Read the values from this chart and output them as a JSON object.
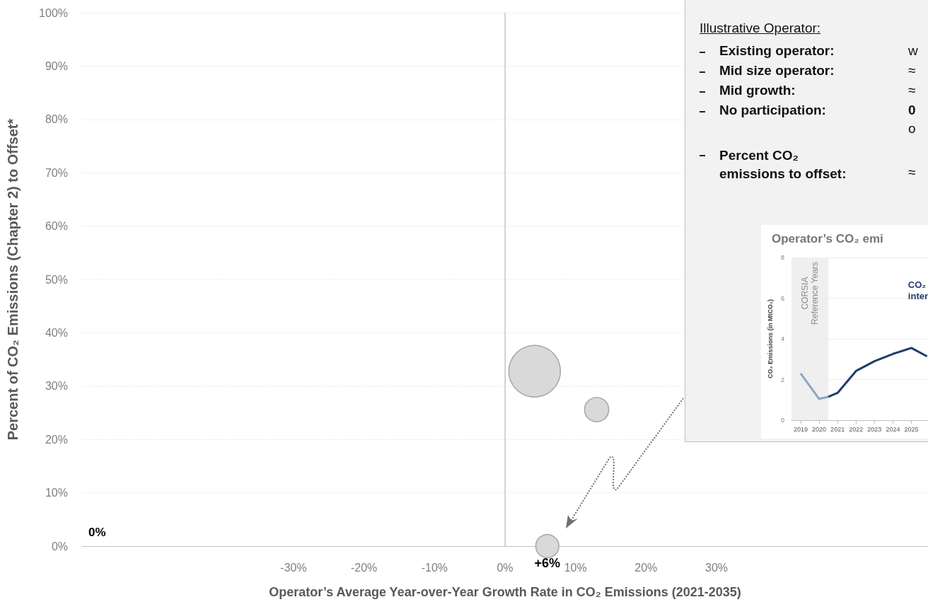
{
  "chart_data": [
    {
      "type": "bubble",
      "xlabel": "Operator’s Average Year-over-Year Growth Rate in CO₂ Emissions (2021-2035)",
      "ylabel": "Percent of CO₂ Emissions (Chapter 2) to Offset*",
      "x": [
        4.2,
        13,
        6
      ],
      "values": [
        32.8,
        25.6,
        0
      ],
      "sizes": [
        1,
        0.22,
        0.2
      ],
      "color": "#d9d9d9",
      "xlim": [
        -60,
        60
      ],
      "xticks": [
        {
          "value": -30,
          "label": "-30%"
        },
        {
          "value": -20,
          "label": "-20%"
        },
        {
          "value": -10,
          "label": "-10%"
        },
        {
          "value": 0,
          "label": "0%"
        },
        {
          "value": 10,
          "label": "10%"
        },
        {
          "value": 20,
          "label": "20%"
        },
        {
          "value": 30,
          "label": "30%"
        }
      ],
      "ylim": [
        0,
        100
      ],
      "yticks": [
        {
          "value": 0,
          "label": "0%"
        },
        {
          "value": 10,
          "label": "10%"
        },
        {
          "value": 20,
          "label": "20%"
        },
        {
          "value": 30,
          "label": "30%"
        },
        {
          "value": 40,
          "label": "40%"
        },
        {
          "value": 50,
          "label": "50%"
        },
        {
          "value": 60,
          "label": "60%"
        },
        {
          "value": 70,
          "label": "70%"
        },
        {
          "value": 80,
          "label": "80%"
        },
        {
          "value": 90,
          "label": "90%"
        },
        {
          "value": 100,
          "label": "100%"
        }
      ],
      "grid": "y",
      "ref_lines": [
        {
          "axis": "x",
          "value": 0,
          "color": "#d0d0d0"
        }
      ],
      "annotations": [
        {
          "text": "+6%",
          "x": 6,
          "y": 0
        },
        "0%"
      ]
    },
    {
      "type": "other",
      "annotations": [
        "Illustrative Operator:",
        "Existing operator:",
        "w",
        "Mid size operator:",
        "≈",
        "Mid growth:",
        "≈",
        "No participation:",
        "0",
        "o",
        "Percent CO₂ emissions to offset:",
        "≈"
      ]
    },
    {
      "type": "line",
      "title": "Operator’s CO₂ emi",
      "ylabel": "CO₂ Emissions (in MtCO₂)",
      "series": [
        {
          "color": "#8ea6c4",
          "x": [
            2019,
            2020,
            2020.5
          ],
          "values": [
            2.3,
            1.05,
            1.15
          ]
        },
        {
          "color": "#1f3d6b",
          "x": [
            2020.5,
            2021,
            2022,
            2023,
            2024,
            2025,
            2025.85
          ],
          "values": [
            1.15,
            1.34,
            2.42,
            2.9,
            3.26,
            3.55,
            3.14
          ]
        }
      ],
      "xlim": [
        2018.5,
        2025.9
      ],
      "xticks": [
        2019,
        2020,
        2021,
        2022,
        2023,
        2024,
        2025
      ],
      "ylim": [
        0,
        8
      ],
      "yticks": [
        0,
        2,
        4,
        6,
        8
      ],
      "grid": "y",
      "bands": [
        {
          "axis": "x",
          "from": 2018.5,
          "to": 2020.5,
          "label": "CORSIA Reference Years",
          "color": "#efefef"
        }
      ],
      "annotations": [
        "CO₂\ninter"
      ]
    }
  ]
}
